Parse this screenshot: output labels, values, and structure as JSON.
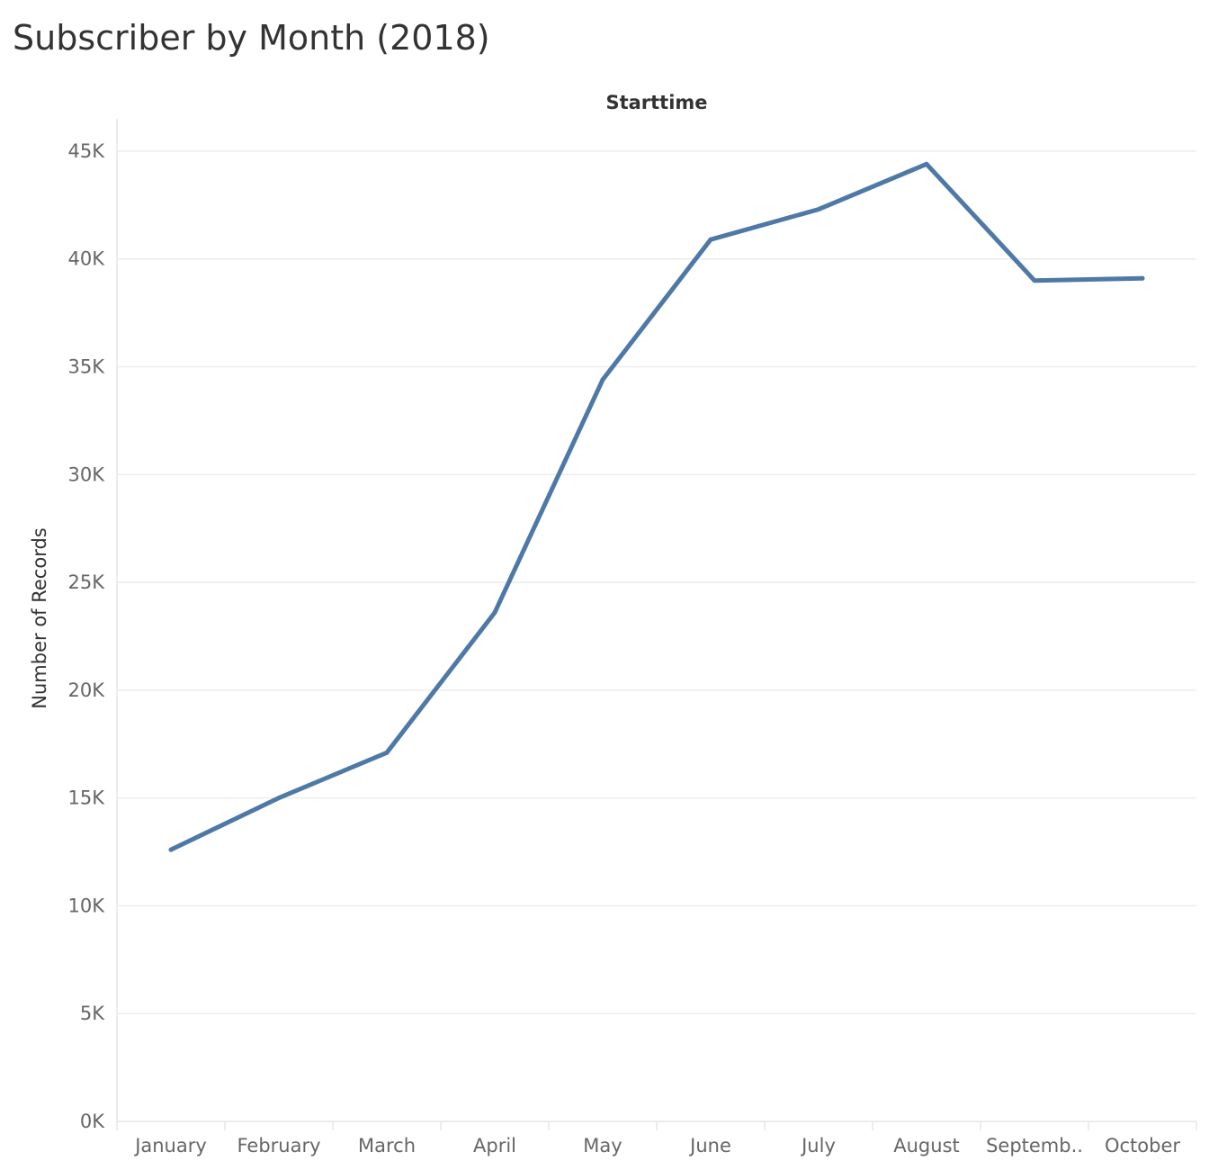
{
  "chart_data": {
    "type": "line",
    "title": "Subscriber by Month (2018)",
    "column_header": "Starttime",
    "ylabel": "Number of Records",
    "xlabel": "",
    "categories": [
      "January",
      "February",
      "March",
      "April",
      "May",
      "June",
      "July",
      "August",
      "Septemb..",
      "October"
    ],
    "series": [
      {
        "values": [
          12600,
          15000,
          17100,
          23600,
          34400,
          40900,
          42300,
          44400,
          39000,
          39100
        ]
      }
    ],
    "ylim": [
      0,
      46500
    ],
    "yticks": [
      0,
      5000,
      10000,
      15000,
      20000,
      25000,
      30000,
      35000,
      40000,
      45000
    ],
    "ytick_labels": [
      "0K",
      "5K",
      "10K",
      "15K",
      "20K",
      "25K",
      "30K",
      "35K",
      "40K",
      "45K"
    ],
    "grid": true,
    "line_color": "#4e79a7",
    "grid_color": "#ececec",
    "axis_color": "#e6e6e6"
  }
}
